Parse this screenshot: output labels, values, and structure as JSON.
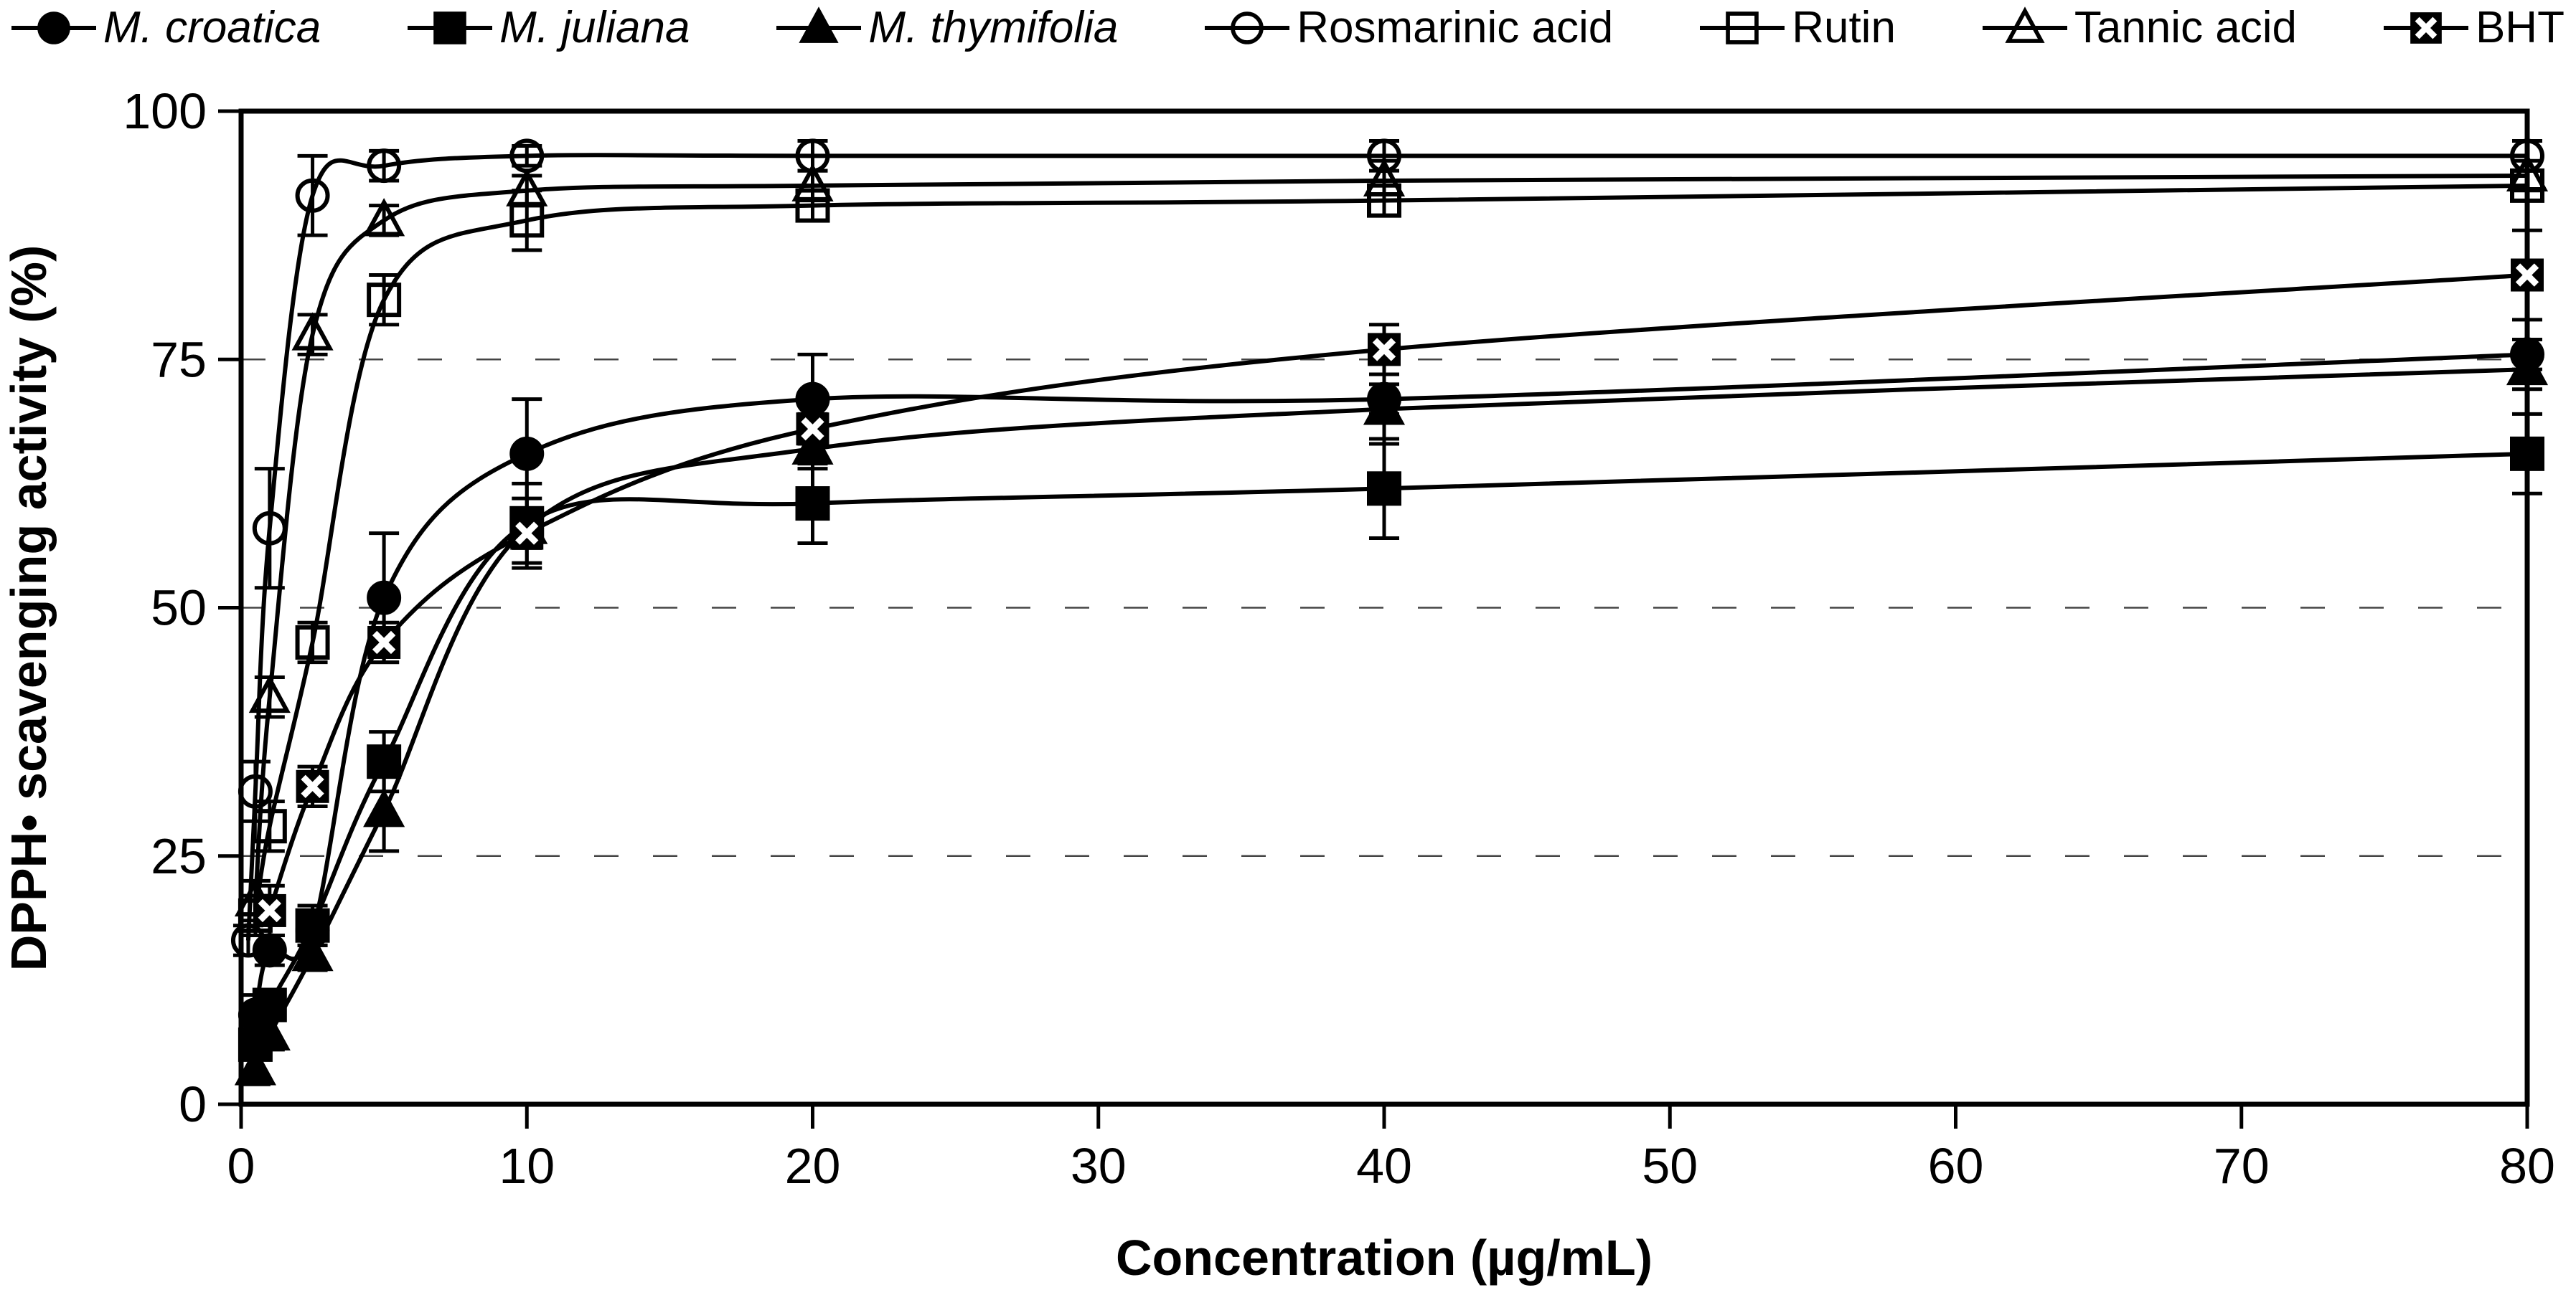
{
  "chart_data": {
    "type": "line",
    "title": "",
    "xlabel": "Concentration (µg/mL)",
    "ylabel": "DPPH• scavenging activity (%)",
    "xlim": [
      0,
      80
    ],
    "ylim": [
      0,
      100
    ],
    "x_ticks": [
      0,
      10,
      20,
      30,
      40,
      50,
      60,
      70,
      80
    ],
    "y_ticks": [
      0,
      25,
      50,
      75,
      100
    ],
    "gridlines_y": [
      25,
      50,
      75
    ],
    "grid_style": "dashed",
    "legend_position": "top",
    "colors": {
      "foreground": "#000000",
      "background": "#ffffff",
      "gridline": "#444444"
    },
    "series": [
      {
        "name": "M. croatica",
        "italic": true,
        "marker": "circle",
        "fill": "filled",
        "points": [
          {
            "x": 0.5,
            "y": 9,
            "e": 2
          },
          {
            "x": 1,
            "y": 15.5,
            "e": 1.5
          },
          {
            "x": 2.5,
            "y": 17.5,
            "e": 1.5
          },
          {
            "x": 5,
            "y": 51,
            "e": 6.5
          },
          {
            "x": 10,
            "y": 65.5,
            "e": 5.5
          },
          {
            "x": 20,
            "y": 71,
            "e": 4.5
          },
          {
            "x": 40,
            "y": 71,
            "e": 1.5
          },
          {
            "x": 80,
            "y": 75.5,
            "e": 1.5
          }
        ]
      },
      {
        "name": "M. juliana",
        "italic": true,
        "marker": "square",
        "fill": "filled",
        "points": [
          {
            "x": 0.5,
            "y": 6,
            "e": 1.5
          },
          {
            "x": 1,
            "y": 10,
            "e": 1.5
          },
          {
            "x": 2.5,
            "y": 18,
            "e": 2
          },
          {
            "x": 5,
            "y": 34.5,
            "e": 3
          },
          {
            "x": 10,
            "y": 58.5,
            "e": 4
          },
          {
            "x": 20,
            "y": 60.5,
            "e": 4
          },
          {
            "x": 40,
            "y": 62,
            "e": 5
          },
          {
            "x": 80,
            "y": 65.5,
            "e": 4
          }
        ]
      },
      {
        "name": "M. thymifolia",
        "italic": true,
        "marker": "triangle",
        "fill": "filled",
        "points": [
          {
            "x": 0.5,
            "y": 3.5,
            "e": 1.5
          },
          {
            "x": 1,
            "y": 7,
            "e": 1.5
          },
          {
            "x": 2.5,
            "y": 15,
            "e": 1.5
          },
          {
            "x": 5,
            "y": 29.5,
            "e": 4
          },
          {
            "x": 10,
            "y": 58,
            "e": 2
          },
          {
            "x": 20,
            "y": 66,
            "e": 2
          },
          {
            "x": 40,
            "y": 70,
            "e": 3.5
          },
          {
            "x": 80,
            "y": 74,
            "e": 2
          }
        ]
      },
      {
        "name": "Rosmarinic acid",
        "italic": false,
        "marker": "circle",
        "fill": "open",
        "points": [
          {
            "x": 0.25,
            "y": 16.5,
            "e": 1.5
          },
          {
            "x": 0.5,
            "y": 31.5,
            "e": 3
          },
          {
            "x": 1,
            "y": 58,
            "e": 6
          },
          {
            "x": 2.5,
            "y": 91.5,
            "e": 4
          },
          {
            "x": 5,
            "y": 94.5,
            "e": 1.5
          },
          {
            "x": 10,
            "y": 95.5,
            "e": 1
          },
          {
            "x": 20,
            "y": 95.5,
            "e": 1.5
          },
          {
            "x": 40,
            "y": 95.5,
            "e": 1.5
          },
          {
            "x": 80,
            "y": 95.5,
            "e": 1.5
          }
        ]
      },
      {
        "name": "Rutin",
        "italic": false,
        "marker": "square",
        "fill": "open",
        "points": [
          {
            "x": 0.5,
            "y": 19,
            "e": 2
          },
          {
            "x": 1,
            "y": 28,
            "e": 2.5
          },
          {
            "x": 2.5,
            "y": 46.5,
            "e": 2
          },
          {
            "x": 5,
            "y": 81,
            "e": 2.5
          },
          {
            "x": 10,
            "y": 89,
            "e": 3
          },
          {
            "x": 20,
            "y": 90.5,
            "e": 1.5
          },
          {
            "x": 40,
            "y": 91,
            "e": 1.5
          },
          {
            "x": 80,
            "y": 92.5,
            "e": 1.5
          }
        ]
      },
      {
        "name": "Tannic acid",
        "italic": false,
        "marker": "triangle",
        "fill": "open",
        "points": [
          {
            "x": 0.5,
            "y": 20.5,
            "e": 2
          },
          {
            "x": 1,
            "y": 41,
            "e": 2
          },
          {
            "x": 2.5,
            "y": 77.5,
            "e": 2
          },
          {
            "x": 5,
            "y": 89,
            "e": 1.5
          },
          {
            "x": 10,
            "y": 92,
            "e": 1.5
          },
          {
            "x": 20,
            "y": 92.5,
            "e": 1.5
          },
          {
            "x": 40,
            "y": 93,
            "e": 2
          },
          {
            "x": 80,
            "y": 93.5,
            "e": 1.5
          }
        ]
      },
      {
        "name": "BHT",
        "italic": false,
        "marker": "boxed-x",
        "fill": "filled",
        "points": [
          {
            "x": 1,
            "y": 19.5,
            "e": 2.5
          },
          {
            "x": 2.5,
            "y": 32,
            "e": 2
          },
          {
            "x": 5,
            "y": 46.5,
            "e": 2
          },
          {
            "x": 10,
            "y": 57.5,
            "e": 3.5
          },
          {
            "x": 20,
            "y": 68,
            "e": 1.5
          },
          {
            "x": 40,
            "y": 76,
            "e": 2.5
          },
          {
            "x": 80,
            "y": 83.5,
            "e": 4.5
          }
        ]
      }
    ]
  }
}
